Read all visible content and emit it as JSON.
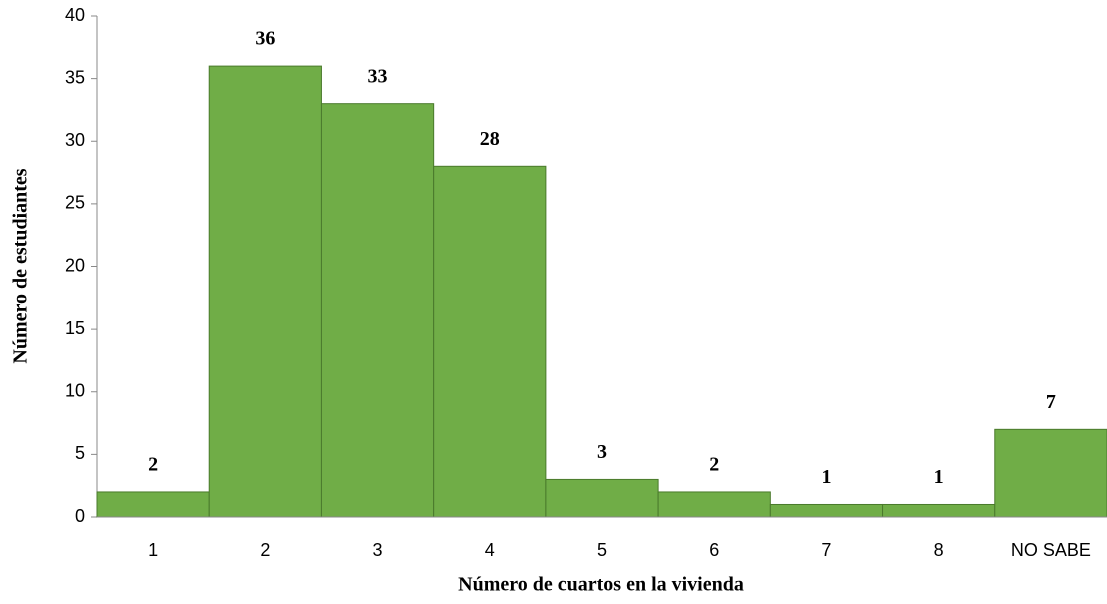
{
  "chart_data": {
    "type": "bar",
    "x_label": "Número de cuartos en la vivienda",
    "y_label": "Número de estudiantes",
    "categories": [
      "1",
      "2",
      "3",
      "4",
      "5",
      "6",
      "7",
      "8",
      "NO SABE"
    ],
    "values": [
      2,
      36,
      33,
      28,
      3,
      2,
      1,
      1,
      7
    ],
    "color": "#70ad47",
    "ylim": [
      0,
      40
    ],
    "yticks": [
      0,
      5,
      10,
      15,
      20,
      25,
      30,
      35,
      40
    ]
  }
}
